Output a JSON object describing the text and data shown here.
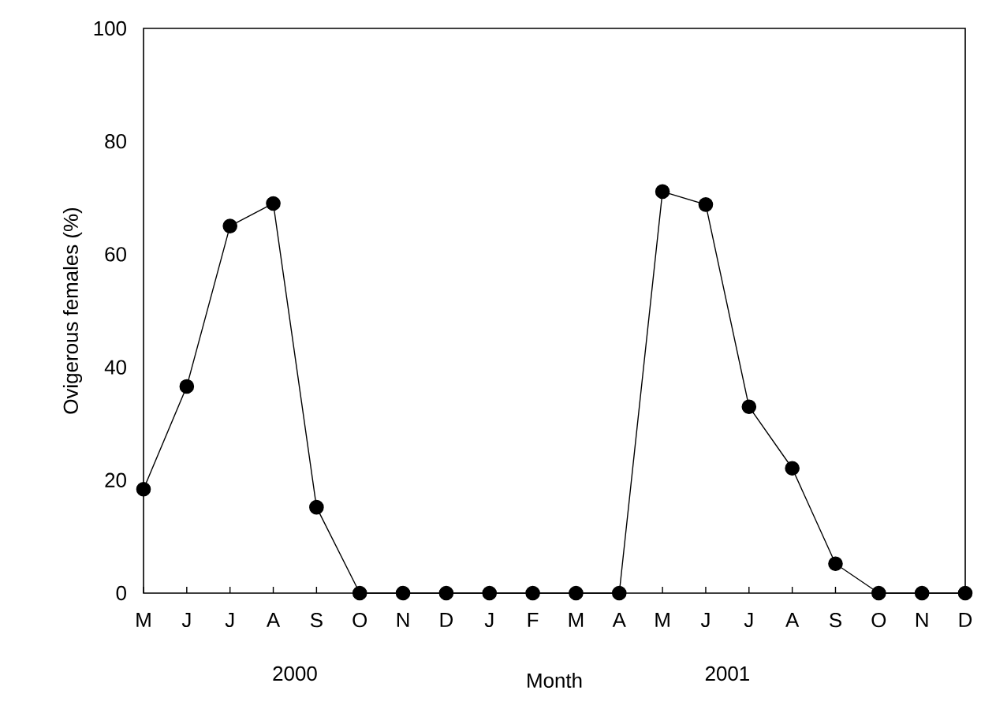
{
  "chart_data": {
    "type": "line",
    "xlabel": "Month",
    "ylabel": "Ovigerous females (%)",
    "categories": [
      "M",
      "J",
      "J",
      "A",
      "S",
      "O",
      "N",
      "D",
      "J",
      "F",
      "M",
      "A",
      "M",
      "J",
      "J",
      "A",
      "S",
      "O",
      "N",
      "D"
    ],
    "series": [
      {
        "color": "#000000",
        "values": [
          18.4,
          36.6,
          65,
          69,
          15.2,
          0,
          0,
          0,
          0,
          0,
          0,
          0,
          71.1,
          68.8,
          33,
          22.1,
          5.2,
          0,
          0,
          0
        ]
      }
    ],
    "ylim": [
      0,
      100
    ],
    "yticks": [
      0,
      20,
      40,
      60,
      80,
      100
    ],
    "annotations": [
      "2000",
      "2001"
    ],
    "grid": false,
    "marker": "circle",
    "line_style": "solid"
  }
}
